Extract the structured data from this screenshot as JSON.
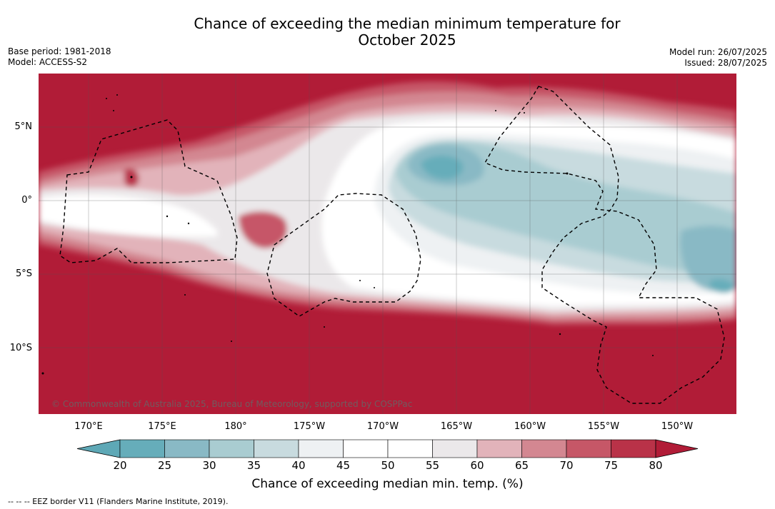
{
  "title_line1": "Chance of exceeding the median minimum temperature for",
  "title_line2": "October 2025",
  "base_period": "Base period: 1981-2018",
  "model": "Model: ACCESS-S2",
  "model_run": "Model run: 26/07/2025",
  "issued": "Issued: 28/07/2025",
  "lat_labels": [
    "5°N",
    "0°",
    "5°S",
    "10°S"
  ],
  "lon_labels": [
    "170°E",
    "175°E",
    "180°",
    "175°W",
    "170°W",
    "165°W",
    "160°W",
    "155°W",
    "150°W"
  ],
  "copyright": "© Commonwealth of Australia 2025, Bureau of Meteorology, supported by COSPPac",
  "colorbar": {
    "ticks": [
      "20",
      "25",
      "30",
      "35",
      "40",
      "45",
      "50",
      "55",
      "60",
      "65",
      "70",
      "75",
      "80"
    ],
    "colors": [
      "#5ea8b6",
      "#66adba",
      "#89b9c5",
      "#a9ccd1",
      "#c8dbdf",
      "#eef1f3",
      "#ffffff",
      "#ffffff",
      "#ebe8ea",
      "#e2b3ba",
      "#d38791",
      "#c65767",
      "#b93248",
      "#b11c37"
    ],
    "title": "Chance of exceeding median min. temp. (%)"
  },
  "footnote": "--  --  -- EEZ border V11 (Flanders Marine Institute, 2019)."
}
